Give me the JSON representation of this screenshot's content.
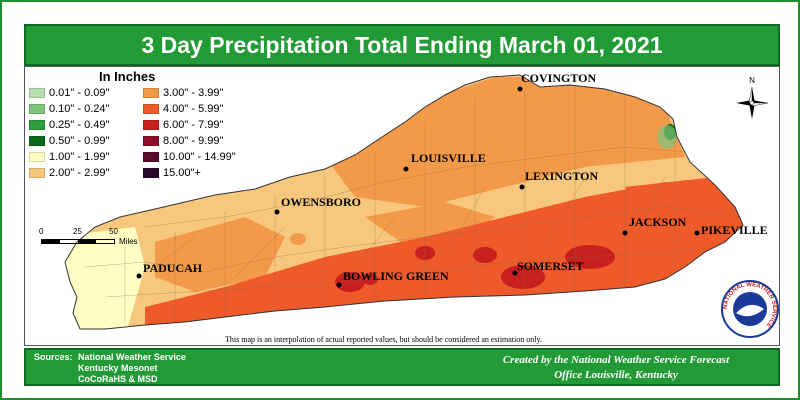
{
  "title": "3 Day Precipitation Total Ending March 01, 2021",
  "legend": {
    "title": "In Inches",
    "items": [
      {
        "label": "0.01\" - 0.09\"",
        "color": "#b8e0b0"
      },
      {
        "label": "0.10\" - 0.24\"",
        "color": "#7cc47a"
      },
      {
        "label": "0.25\" - 0.49\"",
        "color": "#2e9e3e"
      },
      {
        "label": "0.50\" - 0.99\"",
        "color": "#0a6a1a"
      },
      {
        "label": "1.00\" - 1.99\"",
        "color": "#ffffc4"
      },
      {
        "label": "2.00\" - 2.99\"",
        "color": "#f8c77e"
      },
      {
        "label": "3.00\" - 3.99\"",
        "color": "#f39a4a"
      },
      {
        "label": "4.00\" - 5.99\"",
        "color": "#ee5a2a"
      },
      {
        "label": "6.00\" - 7.99\"",
        "color": "#c8201e"
      },
      {
        "label": "8.00\" - 9.99\"",
        "color": "#8e0f2a"
      },
      {
        "label": "10.00\" - 14.99\"",
        "color": "#5a0a2a"
      },
      {
        "label": "15.00\"+",
        "color": "#2a0a2a"
      }
    ]
  },
  "cities": [
    {
      "name": "COVINGTON"
    },
    {
      "name": "LOUISVILLE"
    },
    {
      "name": "LEXINGTON"
    },
    {
      "name": "OWENSBORO"
    },
    {
      "name": "JACKSON"
    },
    {
      "name": "PIKEVILLE"
    },
    {
      "name": "PADUCAH"
    },
    {
      "name": "BOWLING GREEN"
    },
    {
      "name": "SOMERSET"
    }
  ],
  "scale": {
    "ticks": [
      "0",
      "25",
      "50"
    ],
    "unit": "Miles"
  },
  "compass": {
    "label": "N",
    "icon": "compass-rose-icon"
  },
  "disclaimer": "This map is an interpolation of actual reported values, but should be considered an estimation only.",
  "logo": {
    "text": "NATIONAL WEATHER SERVICE",
    "icon": "nws-logo-icon"
  },
  "footer": {
    "sources_label": "Sources:",
    "sources": [
      "National Weather Service",
      "Kentucky Mesonet",
      "CoCoRaHS & MSD"
    ],
    "credit_line1": "Created by the National Weather Service Forecast",
    "credit_line2": "Office Louisville, Kentucky"
  }
}
